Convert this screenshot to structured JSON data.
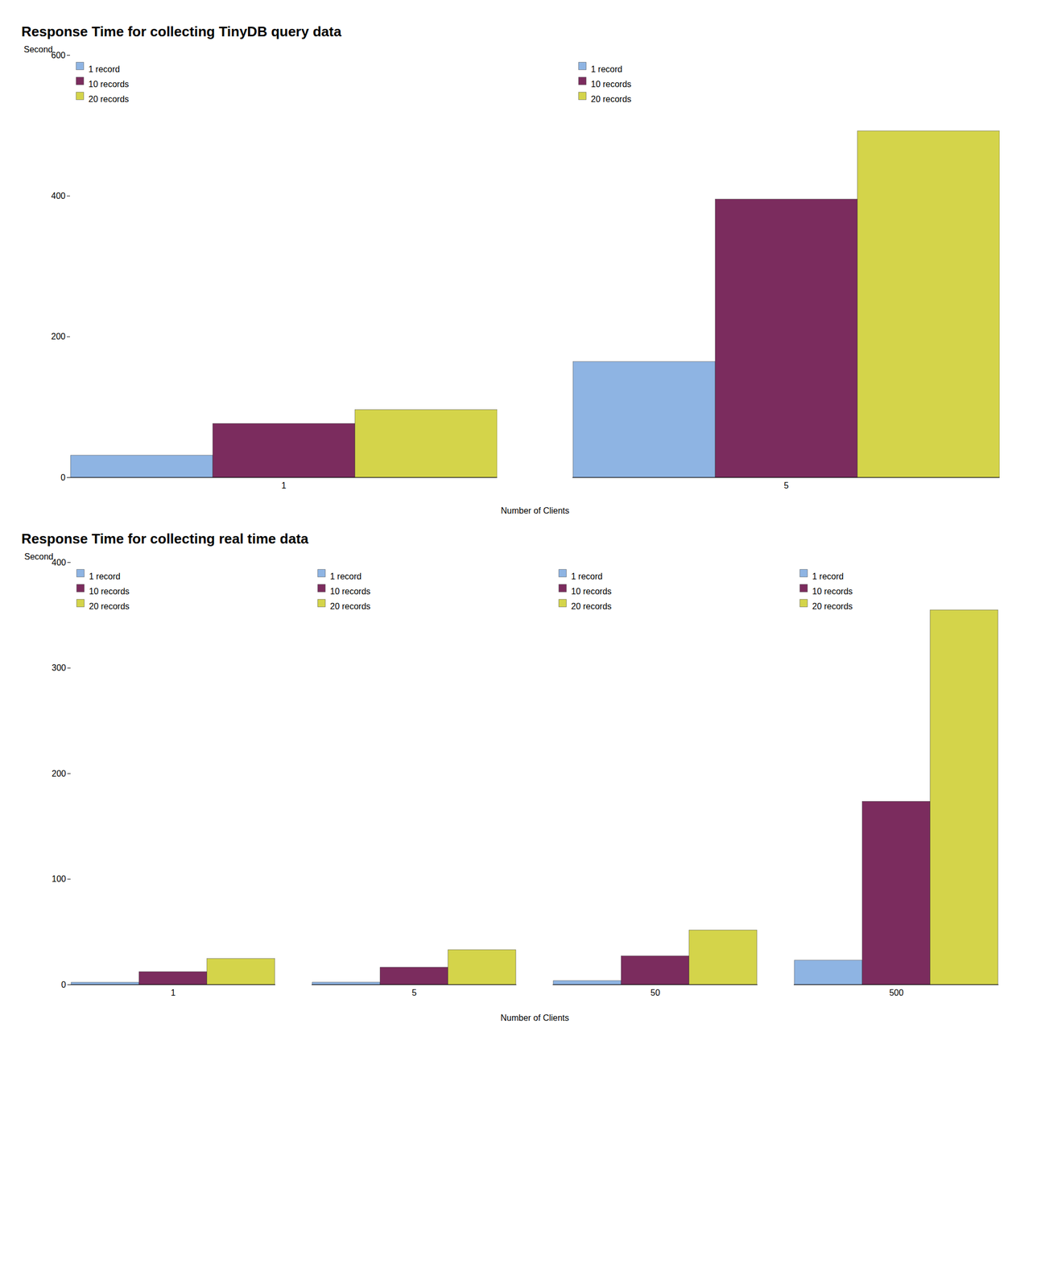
{
  "chart_data": [
    {
      "type": "bar",
      "title": "Response Time for collecting TinyDB query data",
      "xlabel": "Number of Clients",
      "ylabel": "Second",
      "categories": [
        "1",
        "5"
      ],
      "series": [
        {
          "name": "1 record",
          "color": "#8eb4e3",
          "values": [
            31.2635,
            164.31775
          ]
        },
        {
          "name": "10 records",
          "color": "#7b2c5e",
          "values": [
            76.5,
            395.272525
          ]
        },
        {
          "name": "20 records",
          "color": "#d4d44a",
          "values": [
            96.05,
            492.21
          ]
        }
      ],
      "ylim": [
        0,
        600
      ],
      "yticks": [
        0,
        200,
        400,
        600
      ],
      "legend": "upper left",
      "grid": false
    },
    {
      "type": "bar",
      "title": "Response Time for collecting real time data",
      "xlabel": "Number of Clients",
      "ylabel": "Second",
      "categories": [
        "1",
        "5",
        "50",
        "500"
      ],
      "series": [
        {
          "name": "1 record",
          "color": "#8eb4e3",
          "values": [
            2.047,
            2.097,
            3.589,
            22.904
          ]
        },
        {
          "name": "10 records",
          "color": "#7b2c5e",
          "values": [
            12.14,
            16.29,
            27.032,
            173.48
          ]
        },
        {
          "name": "20 records",
          "color": "#d4d44a",
          "values": [
            24.52,
            32.904,
            51.602,
            354.86
          ]
        }
      ],
      "ylim": [
        0,
        400
      ],
      "yticks": [
        0,
        100,
        200,
        300,
        400
      ],
      "legend": "upper left",
      "grid": false
    }
  ]
}
